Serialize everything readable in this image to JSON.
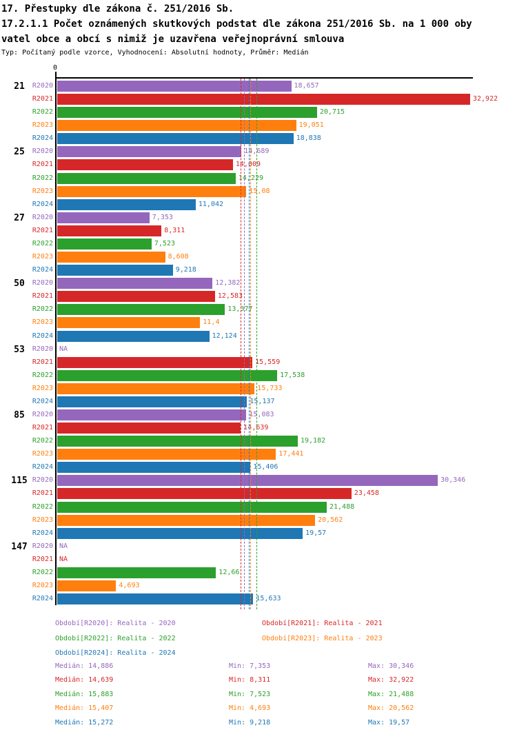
{
  "header": {
    "title": "17. Přestupky dle zákona č. 251/2016 Sb.",
    "subtitle_line1": "17.2.1.1 Počet oznámených skutkových podstat dle zákona 251/2016 Sb. na 1 000 oby",
    "subtitle_line2": "vatel obce a obcí s nimiž je uzavřena veřejnoprávní smlouva",
    "meta": "Typ: Počítaný podle vzorce, Vyhodnocení: Absolutní hodnoty, Průměr: Medián"
  },
  "stats_labels": {
    "median": "Medián",
    "min": "Min",
    "max": "Max"
  },
  "na_label": "NA",
  "chart_data": {
    "type": "bar",
    "orientation": "horizontal",
    "grid": false,
    "legend_position": "bottom",
    "value_axis": {
      "zero_label": "0",
      "min": 0,
      "max": 32.922
    },
    "groups": [
      "21",
      "25",
      "27",
      "50",
      "53",
      "85",
      "115",
      "147"
    ],
    "series": [
      {
        "name": "R2020",
        "color": "#9467bd",
        "legend": "Období[R2020]: Realita - 2020",
        "values": [
          18.657,
          14.689,
          7.353,
          12.382,
          null,
          15.083,
          30.346,
          null
        ],
        "value_labels": [
          "18,657",
          "14,689",
          "7,353",
          "12,382",
          "NA",
          "15,083",
          "30,346",
          "NA"
        ],
        "median": 14.886,
        "stats": {
          "median": "14,886",
          "min": "7,353",
          "max": "30,346"
        }
      },
      {
        "name": "R2021",
        "color": "#d62728",
        "legend": "Období[R2021]: Realita - 2021",
        "values": [
          32.922,
          14.009,
          8.311,
          12.583,
          15.559,
          14.639,
          23.458,
          null
        ],
        "value_labels": [
          "32,922",
          "14,009",
          "8,311",
          "12,583",
          "15,559",
          "14,639",
          "23,458",
          "NA"
        ],
        "median": 14.639,
        "stats": {
          "median": "14,639",
          "min": "8,311",
          "max": "32,922"
        }
      },
      {
        "name": "R2022",
        "color": "#2ca02c",
        "legend": "Období[R2022]: Realita - 2022",
        "values": [
          20.715,
          14.229,
          7.523,
          13.377,
          17.538,
          19.182,
          21.488,
          12.66
        ],
        "value_labels": [
          "20,715",
          "14,229",
          "7,523",
          "13,377",
          "17,538",
          "19,182",
          "21,488",
          "12,66"
        ],
        "median": 15.883,
        "stats": {
          "median": "15,883",
          "min": "7,523",
          "max": "21,488"
        }
      },
      {
        "name": "R2023",
        "color": "#ff7f0e",
        "legend": "Období[R2023]: Realita - 2023",
        "values": [
          19.051,
          15.08,
          8.608,
          11.4,
          15.733,
          17.441,
          20.562,
          4.693
        ],
        "value_labels": [
          "19,051",
          "15,08",
          "8,608",
          "11,4",
          "15,733",
          "17,441",
          "20,562",
          "4,693"
        ],
        "median": 15.407,
        "stats": {
          "median": "15,407",
          "min": "4,693",
          "max": "20,562"
        }
      },
      {
        "name": "R2024",
        "color": "#1f77b4",
        "legend": "Období[R2024]: Realita - 2024",
        "values": [
          18.838,
          11.042,
          9.218,
          12.124,
          15.137,
          15.406,
          19.57,
          15.633
        ],
        "value_labels": [
          "18,838",
          "11,042",
          "9,218",
          "12,124",
          "15,137",
          "15,406",
          "19,57",
          "15,633"
        ],
        "median": 15.272,
        "stats": {
          "median": "15,272",
          "min": "9,218",
          "max": "19,57"
        }
      }
    ]
  }
}
